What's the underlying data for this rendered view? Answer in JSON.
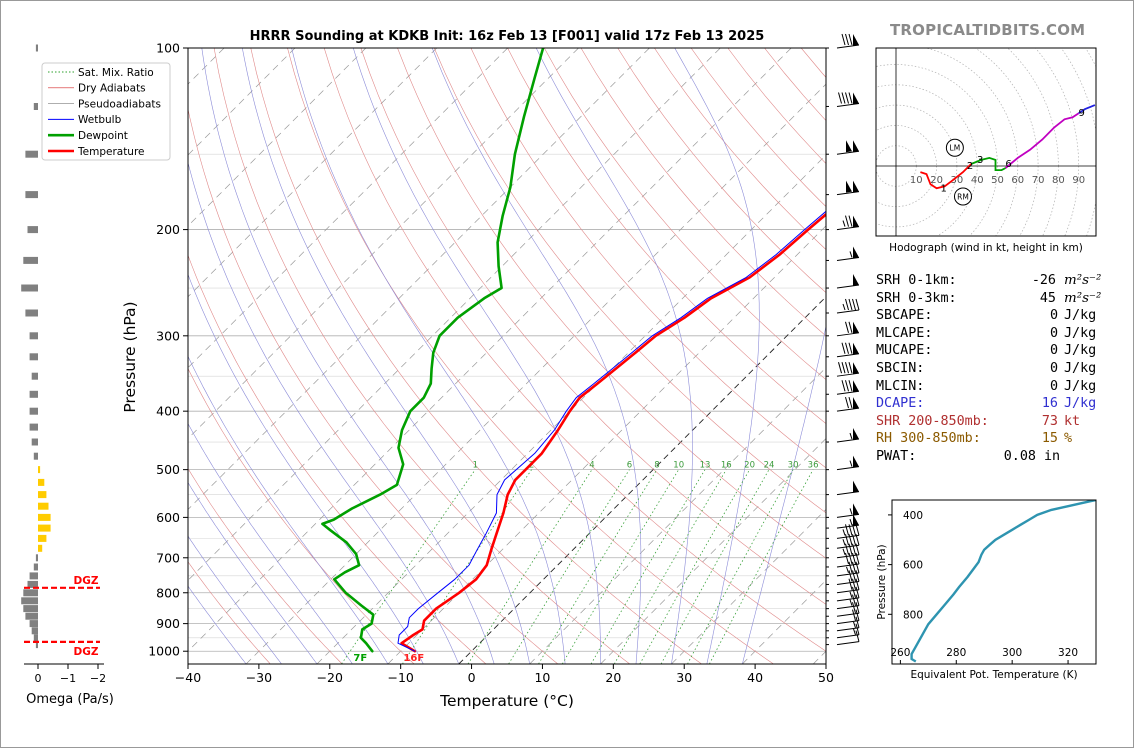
{
  "chart_data": [
    {
      "type": "line",
      "name": "skew-t",
      "title": "HRRR Sounding at KDKB Init: 16z Feb 13 [F001] valid 17z Feb 13 2025",
      "xlabel": "Temperature (°C)",
      "ylabel": "Pressure (hPa)",
      "xlim": [
        -40,
        50
      ],
      "ylim": [
        1050,
        100
      ],
      "y_scale": "log",
      "x_ticks": [
        -40,
        -30,
        -20,
        -10,
        0,
        10,
        20,
        30,
        40,
        50
      ],
      "x_tick_labels": [
        "−40",
        "−30",
        "−20",
        "−10",
        "0",
        "10",
        "20",
        "30",
        "40",
        "50"
      ],
      "y_ticks": [
        100,
        200,
        300,
        400,
        500,
        600,
        700,
        800,
        900,
        1000
      ],
      "grid": true,
      "legend": {
        "placement": "top-left",
        "entries": [
          {
            "label": "Sat. Mix. Ratio",
            "color": "#2ca02c",
            "style": "dotted"
          },
          {
            "label": "Dry Adiabats",
            "color": "#d62728",
            "style": "solid-thin"
          },
          {
            "label": "Pseudoadiabats",
            "color": "#7f7f7f",
            "style": "solid-thin"
          },
          {
            "label": "Wetbulb",
            "color": "#0000ff",
            "style": "solid"
          },
          {
            "label": "Dewpoint",
            "color": "#00a000",
            "style": "bold"
          },
          {
            "label": "Temperature",
            "color": "#ff0000",
            "style": "bold"
          }
        ]
      },
      "mixing_ratio_labels": [
        "1",
        "2",
        "4",
        "6",
        "8",
        "10",
        "13",
        "16",
        "20",
        "24",
        "30",
        "36"
      ],
      "surface_labels": {
        "dewpoint": "7F",
        "temperature": "16F"
      },
      "series": [
        {
          "name": "Temperature",
          "color": "#ff0000",
          "points": [
            [
              -8,
              1000
            ],
            [
              -11,
              970
            ],
            [
              -10.5,
              940
            ],
            [
              -10,
              920
            ],
            [
              -11,
              890
            ],
            [
              -11,
              850
            ],
            [
              -10,
              800
            ],
            [
              -9.5,
              760
            ],
            [
              -10,
              720
            ],
            [
              -11.5,
              680
            ],
            [
              -13,
              640
            ],
            [
              -15,
              590
            ],
            [
              -17,
              550
            ],
            [
              -18,
              520
            ],
            [
              -18,
              470
            ],
            [
              -19,
              430
            ],
            [
              -20,
              400
            ],
            [
              -20.5,
              380
            ],
            [
              -20,
              360
            ],
            [
              -19.5,
              340
            ],
            [
              -19,
              320
            ],
            [
              -18.5,
              300
            ],
            [
              -17,
              280
            ],
            [
              -16,
              260
            ],
            [
              -13.5,
              240
            ],
            [
              -12.5,
              220
            ],
            [
              -12,
              200
            ],
            [
              -11.5,
              185
            ],
            [
              -11.5,
              170
            ],
            [
              -11,
              155
            ],
            [
              -13,
              140
            ],
            [
              -15,
              125
            ],
            [
              -17,
              112
            ],
            [
              -19,
              100
            ]
          ]
        },
        {
          "name": "Wetbulb",
          "color": "#0000ff",
          "points": [
            [
              -8,
              1000
            ],
            [
              -11.5,
              970
            ],
            [
              -12.5,
              940
            ],
            [
              -12.5,
              910
            ],
            [
              -13.5,
              880
            ],
            [
              -13.5,
              850
            ],
            [
              -13,
              800
            ],
            [
              -12.5,
              760
            ],
            [
              -12.5,
              720
            ],
            [
              -13.5,
              680
            ],
            [
              -14.5,
              640
            ],
            [
              -16,
              590
            ],
            [
              -18.5,
              550
            ],
            [
              -19.5,
              520
            ],
            [
              -19,
              470
            ],
            [
              -19.5,
              430
            ],
            [
              -20.5,
              400
            ],
            [
              -21,
              380
            ],
            [
              -20.5,
              360
            ],
            [
              -20,
              340
            ],
            [
              -19.5,
              320
            ],
            [
              -19,
              300
            ],
            [
              -17.5,
              280
            ],
            [
              -16.5,
              260
            ],
            [
              -14,
              240
            ],
            [
              -13,
              220
            ],
            [
              -12.5,
              200
            ],
            [
              -12,
              185
            ],
            [
              -12,
              170
            ],
            [
              -12,
              155
            ],
            [
              -14,
              140
            ],
            [
              -16,
              125
            ],
            [
              -18,
              112
            ],
            [
              -20,
              100
            ]
          ]
        },
        {
          "name": "Dewpoint",
          "color": "#00a000",
          "points": [
            [
              -14,
              1000
            ],
            [
              -16,
              970
            ],
            [
              -17.5,
              950
            ],
            [
              -18.5,
              920
            ],
            [
              -18,
              900
            ],
            [
              -19,
              870
            ],
            [
              -22,
              840
            ],
            [
              -26,
              800
            ],
            [
              -29.5,
              760
            ],
            [
              -29,
              740
            ],
            [
              -28,
              720
            ],
            [
              -30,
              690
            ],
            [
              -33,
              660
            ],
            [
              -37,
              630
            ],
            [
              -39,
              615
            ],
            [
              -38,
              605
            ],
            [
              -37,
              580
            ],
            [
              -35,
              550
            ],
            [
              -34,
              530
            ],
            [
              -36,
              490
            ],
            [
              -39,
              460
            ],
            [
              -41,
              430
            ],
            [
              -42.5,
              400
            ],
            [
              -42.5,
              380
            ],
            [
              -43.5,
              360
            ],
            [
              -45.5,
              340
            ],
            [
              -47.5,
              320
            ],
            [
              -49,
              300
            ],
            [
              -49,
              280
            ],
            [
              -48,
              260
            ],
            [
              -47,
              250
            ],
            [
              -50.5,
              230
            ],
            [
              -54,
              210
            ],
            [
              -57,
              190
            ],
            [
              -60,
              170
            ],
            [
              -64,
              150
            ],
            [
              -68,
              130
            ],
            [
              -72,
              112
            ],
            [
              -75,
              100
            ]
          ]
        }
      ],
      "barbs": {
        "pressures_hpa": [
          100,
          125,
          150,
          175,
          200,
          225,
          250,
          275,
          300,
          325,
          350,
          375,
          400,
          450,
          500,
          550,
          600,
          625,
          650,
          675,
          700,
          725,
          750,
          775,
          800,
          825,
          850,
          875,
          900,
          925,
          950,
          975
        ],
        "speeds_kt": [
          80,
          90,
          100,
          100,
          75,
          55,
          50,
          45,
          70,
          80,
          90,
          80,
          70,
          55,
          55,
          50,
          55,
          55,
          45,
          45,
          45,
          40,
          35,
          30,
          30,
          25,
          25,
          20,
          20,
          15,
          15,
          10
        ]
      }
    },
    {
      "type": "bar",
      "name": "omega",
      "xlabel": "Omega (Pa/s)",
      "x_ticks": [
        0,
        -1,
        -2
      ],
      "x_tick_labels": [
        "0",
        "−1",
        "−2"
      ],
      "dgz_label": "DGZ",
      "dgz_pressures_hpa": [
        785,
        965
      ],
      "bars": [
        [
          100,
          -0.05
        ],
        [
          125,
          -0.1
        ],
        [
          150,
          -0.3
        ],
        [
          175,
          -0.3
        ],
        [
          200,
          -0.25
        ],
        [
          225,
          -0.35
        ],
        [
          250,
          -0.4
        ],
        [
          275,
          -0.3
        ],
        [
          300,
          -0.2
        ],
        [
          325,
          -0.2
        ],
        [
          350,
          -0.15
        ],
        [
          375,
          -0.2
        ],
        [
          400,
          -0.2
        ],
        [
          425,
          -0.2
        ],
        [
          450,
          -0.15
        ],
        [
          475,
          -0.1
        ],
        [
          500,
          0.05
        ],
        [
          525,
          0.15
        ],
        [
          550,
          0.2
        ],
        [
          575,
          0.25
        ],
        [
          600,
          0.3
        ],
        [
          625,
          0.3
        ],
        [
          650,
          0.2
        ],
        [
          675,
          0.1
        ],
        [
          700,
          -0.05
        ],
        [
          725,
          -0.1
        ],
        [
          750,
          -0.2
        ],
        [
          775,
          -0.25
        ],
        [
          800,
          -0.35
        ],
        [
          825,
          -0.4
        ],
        [
          850,
          -0.35
        ],
        [
          875,
          -0.3
        ],
        [
          900,
          -0.2
        ],
        [
          925,
          -0.15
        ],
        [
          950,
          -0.1
        ],
        [
          975,
          -0.05
        ]
      ],
      "colors": {
        "negative": "#808080",
        "positive": "#ffcc00"
      }
    },
    {
      "type": "line",
      "name": "hodograph",
      "xlabel": "Hodograph (wind in kt, height in km)",
      "ring_labels": [
        "10",
        "20",
        "30",
        "40",
        "50",
        "60",
        "70",
        "80",
        "90"
      ],
      "storm_motion_labels": [
        "LM",
        "RM"
      ],
      "height_labels": [
        "1",
        "2",
        "3",
        "6",
        "9"
      ],
      "segments": [
        {
          "color": "#ff0000",
          "points": [
            [
              12,
              -3
            ],
            [
              15,
              -4
            ],
            [
              17,
              -9
            ],
            [
              20,
              -11
            ],
            [
              24,
              -10
            ],
            [
              28,
              -7
            ],
            [
              33,
              -3
            ],
            [
              37,
              1
            ]
          ]
        },
        {
          "color": "#00a000",
          "points": [
            [
              37,
              1
            ],
            [
              42,
              3
            ],
            [
              46,
              4
            ],
            [
              49,
              3
            ],
            [
              49,
              -2
            ],
            [
              52,
              -2
            ],
            [
              54,
              -1
            ]
          ]
        },
        {
          "color": "#c000c0",
          "points": [
            [
              54,
              -1
            ],
            [
              60,
              4
            ],
            [
              66,
              8
            ],
            [
              72,
              13
            ],
            [
              78,
              19
            ],
            [
              83,
              23
            ],
            [
              87,
              24
            ],
            [
              90,
              26
            ]
          ]
        },
        {
          "color": "#2020e0",
          "points": [
            [
              90,
              26
            ],
            [
              93,
              28
            ],
            [
              98,
              30
            ]
          ]
        }
      ],
      "labelled_points": [
        [
          22,
          -11,
          "1"
        ],
        [
          35,
          0,
          "2"
        ],
        [
          40,
          3,
          "3"
        ],
        [
          54,
          1,
          "6"
        ],
        [
          90,
          26,
          "9"
        ]
      ],
      "storm_motion": [
        [
          29,
          9,
          "LM"
        ],
        [
          33,
          -15,
          "RM"
        ]
      ]
    },
    {
      "type": "line",
      "name": "theta-e",
      "xlabel": "Equivalent Pot. Temperature (K)",
      "ylabel": "Pressure (hPa)",
      "xlim": [
        257,
        330
      ],
      "x_ticks": [
        260,
        280,
        300,
        320
      ],
      "y_ticks": [
        400,
        600,
        800
      ],
      "ylim": [
        1000,
        340
      ],
      "series": [
        {
          "name": "",
          "color": "#2e94b0",
          "points": [
            [
              265.5,
              990
            ],
            [
              264,
              980
            ],
            [
              264,
              960
            ],
            [
              265.5,
              930
            ],
            [
              268,
              880
            ],
            [
              270,
              840
            ],
            [
              273,
              800
            ],
            [
              276,
              760
            ],
            [
              279,
              720
            ],
            [
              281,
              690
            ],
            [
              284,
              650
            ],
            [
              286,
              620
            ],
            [
              288,
              590
            ],
            [
              289,
              560
            ],
            [
              290,
              540
            ],
            [
              292,
              520
            ],
            [
              294,
              500
            ],
            [
              297,
              480
            ],
            [
              300,
              460
            ],
            [
              303,
              440
            ],
            [
              306,
              420
            ],
            [
              309,
              400
            ],
            [
              314,
              380
            ],
            [
              320,
              365
            ],
            [
              324,
              355
            ],
            [
              328,
              345
            ],
            [
              330,
              340
            ]
          ]
        }
      ]
    }
  ],
  "branding": {
    "site": "TROPICALTIDBITS.COM"
  },
  "stats": [
    {
      "label": "SRH 0-1km:",
      "value": "-26",
      "unit": "m²s⁻²",
      "color": "#000000"
    },
    {
      "label": "SRH 0-3km:",
      "value": "45",
      "unit": "m²s⁻²",
      "color": "#000000"
    },
    {
      "label": "SBCAPE:",
      "value": "0",
      "unit": "J/kg",
      "color": "#000000"
    },
    {
      "label": "MLCAPE:",
      "value": "0",
      "unit": "J/kg",
      "color": "#000000"
    },
    {
      "label": "MUCAPE:",
      "value": "0",
      "unit": "J/kg",
      "color": "#000000"
    },
    {
      "label": "SBCIN:",
      "value": "0",
      "unit": "J/kg",
      "color": "#000000"
    },
    {
      "label": "MLCIN:",
      "value": "0",
      "unit": "J/kg",
      "color": "#000000"
    },
    {
      "label": "DCAPE:",
      "value": "16",
      "unit": "J/kg",
      "color": "#3030d0"
    },
    {
      "label": "SHR 200-850mb:",
      "value": "73",
      "unit": "kt",
      "color": "#b03030"
    },
    {
      "label": "RH 300-850mb:",
      "value": "15",
      "unit": "%",
      "color": "#8b5a00"
    },
    {
      "label": "PWAT:",
      "value": "0.08",
      "unit": "in",
      "color": "#000000"
    }
  ]
}
